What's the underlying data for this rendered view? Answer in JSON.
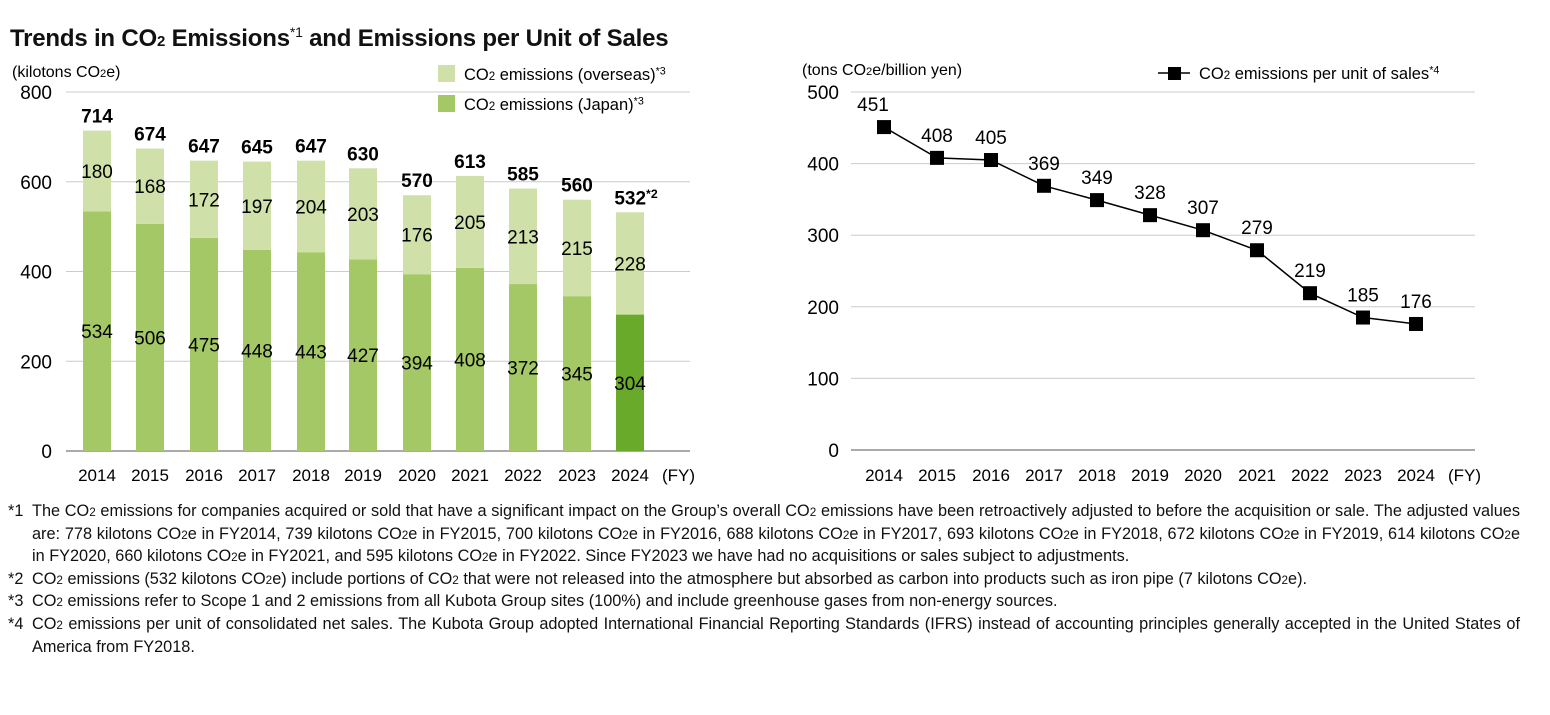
{
  "title": {
    "pre": "Trends in CO",
    "sub": "2",
    "mid": " Emissions",
    "sup": "*1",
    "post": " and Emissions per Unit of Sales"
  },
  "colors": {
    "overseas": "#cfe1a9",
    "japan_historic": "#a4c865",
    "japan_2024": "#6aaa2a",
    "line": "#000000",
    "grid": "#cccccc"
  },
  "chart_data": [
    {
      "type": "bar",
      "stacked": true,
      "ylabel": "(kilotons CO2e)",
      "x_unit": "(FY)",
      "ylim": [
        0,
        800
      ],
      "yticks": [
        "0",
        "200",
        "400",
        "600",
        "800"
      ],
      "categories": [
        "2014",
        "2015",
        "2016",
        "2017",
        "2018",
        "2019",
        "2020",
        "2021",
        "2022",
        "2023",
        "2024"
      ],
      "series": [
        {
          "name": "CO2 emissions (Japan)*3",
          "values": [
            534,
            506,
            475,
            448,
            443,
            427,
            394,
            408,
            372,
            345,
            304
          ]
        },
        {
          "name": "CO2 emissions (overseas)*3",
          "values": [
            180,
            168,
            172,
            197,
            204,
            203,
            176,
            205,
            213,
            215,
            228
          ]
        }
      ],
      "totals": [
        "714",
        "674",
        "647",
        "645",
        "647",
        "630",
        "570",
        "613",
        "585",
        "560",
        "532*2"
      ],
      "legend_position": "top-right",
      "grid": true
    },
    {
      "type": "line",
      "ylabel": "(tons CO2e/billion yen)",
      "x_unit": "(FY)",
      "ylim": [
        0,
        500
      ],
      "yticks": [
        "0",
        "100",
        "200",
        "300",
        "400",
        "500"
      ],
      "categories": [
        "2014",
        "2015",
        "2016",
        "2017",
        "2018",
        "2019",
        "2020",
        "2021",
        "2022",
        "2023",
        "2024"
      ],
      "series": [
        {
          "name": "CO2 emissions per unit of sales*4",
          "values": [
            451,
            408,
            405,
            369,
            349,
            328,
            307,
            279,
            219,
            185,
            176
          ]
        }
      ],
      "legend_position": "top-right",
      "grid": true
    }
  ],
  "footnotes": [
    {
      "mark": "*1",
      "text": "The CO2 emissions for companies acquired or sold that have a significant impact on the Group’s overall CO2 emissions have been retroactively adjusted to before the acquisition or sale. The adjusted values are: 778 kilotons CO2e in FY2014, 739 kilotons CO2e in FY2015, 700 kilotons CO2e in FY2016, 688 kilotons CO2e in FY2017, 693 kilotons CO2e in FY2018, 672 kilotons CO2e in FY2019, 614 kilotons CO2e in FY2020, 660 kilotons CO2e in FY2021, and 595 kilotons CO2e in FY2022. Since FY2023 we have had no acquisitions or sales subject to adjustments."
    },
    {
      "mark": "*2",
      "text": "CO2 emissions (532 kilotons CO2e) include portions of CO2 that were not released into the atmosphere but absorbed as carbon into products such as iron pipe (7 kilotons CO2e)."
    },
    {
      "mark": "*3",
      "text": "CO2 emissions refer to Scope 1 and 2 emissions from all Kubota Group sites (100%) and include greenhouse gases from non-energy sources."
    },
    {
      "mark": "*4",
      "text": "CO2 emissions per unit of consolidated net sales. The Kubota Group adopted International Financial Reporting Standards (IFRS) instead of accounting principles generally accepted in the United States of America from FY2018."
    }
  ]
}
